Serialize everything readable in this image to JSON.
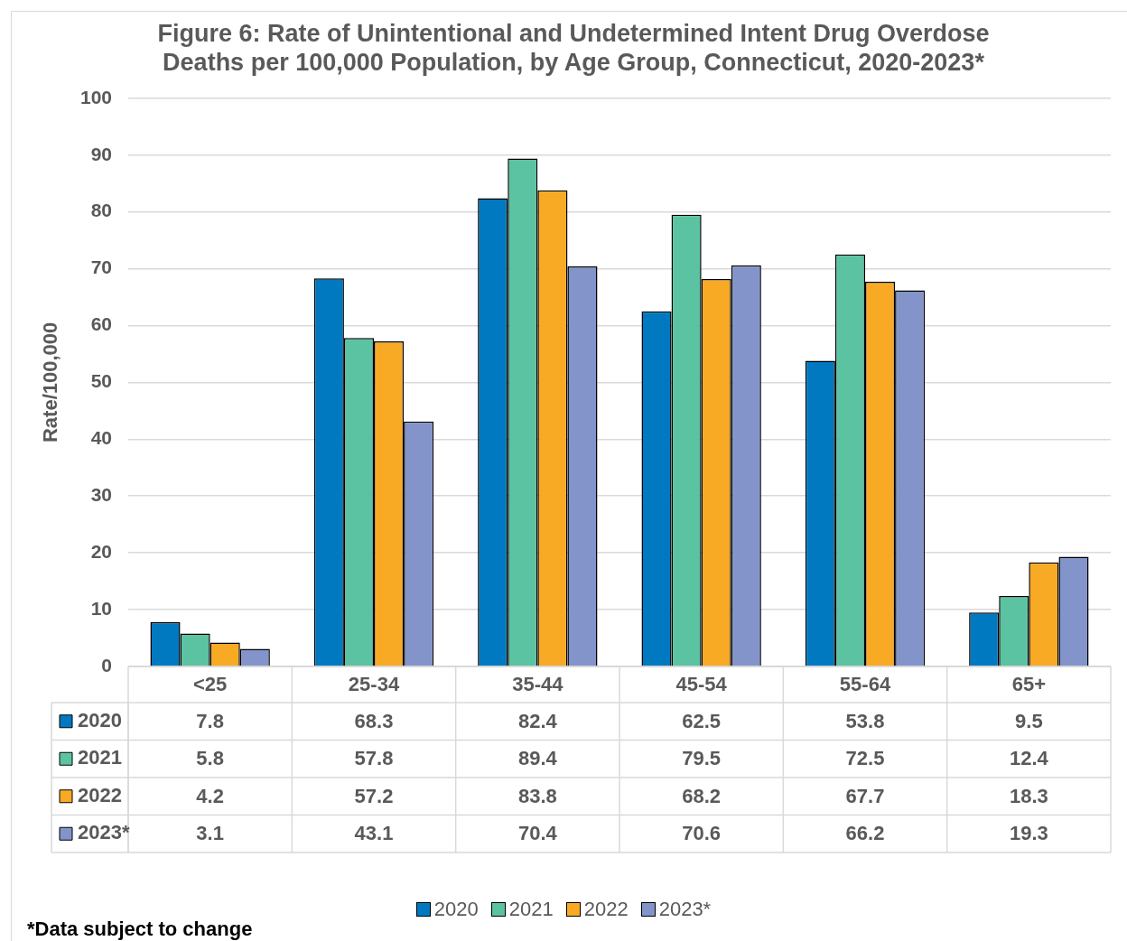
{
  "chart_data": {
    "type": "bar",
    "title": "Figure 6: Rate of Unintentional and Undetermined Intent Drug Overdose Deaths per 100,000 Population, by Age Group, Connecticut, 2020-2023*",
    "ylabel": "Rate/100,000",
    "categories": [
      "<25",
      "25-34",
      "35-44",
      "45-54",
      "55-64",
      "65+"
    ],
    "series": [
      {
        "name": "2020",
        "color": "#0079c1",
        "values": [
          7.8,
          68.3,
          82.4,
          62.5,
          53.8,
          9.5
        ]
      },
      {
        "name": "2021",
        "color": "#5cc3a2",
        "values": [
          5.8,
          57.8,
          89.4,
          79.5,
          72.5,
          12.4
        ]
      },
      {
        "name": "2022",
        "color": "#f8aa25",
        "values": [
          4.2,
          57.2,
          83.8,
          68.2,
          67.7,
          18.3
        ]
      },
      {
        "name": "2023*",
        "color": "#8394ca",
        "values": [
          3.1,
          43.1,
          70.4,
          70.6,
          66.2,
          19.3
        ]
      }
    ],
    "ylim": [
      0,
      100
    ],
    "yticks": [
      0,
      10,
      20,
      30,
      40,
      50,
      60,
      70,
      80,
      90,
      100
    ],
    "grid": "y",
    "legend": "bottom",
    "data_labels": true,
    "annotations": [
      "*Data subject to change"
    ]
  }
}
